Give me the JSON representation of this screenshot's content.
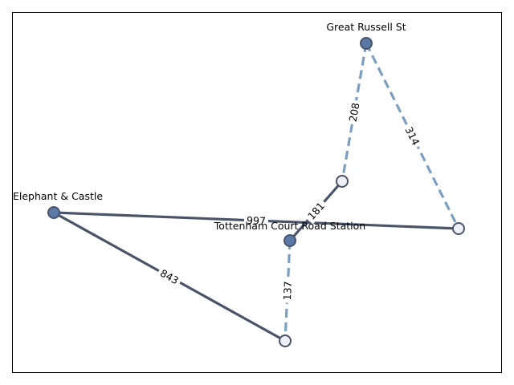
{
  "nodes": [
    {
      "id": "gr",
      "label": "Great Russell St",
      "style": "filled"
    },
    {
      "id": "n1",
      "label": "",
      "style": "hollow"
    },
    {
      "id": "n2",
      "label": "",
      "style": "hollow"
    },
    {
      "id": "ec",
      "label": "Elephant & Castle",
      "style": "filled"
    },
    {
      "id": "tcr",
      "label": "Tottenham Court Road Station",
      "style": "filled"
    },
    {
      "id": "n3",
      "label": "",
      "style": "hollow"
    }
  ],
  "edges": [
    {
      "from": "ec",
      "to": "n2",
      "weight": "997",
      "style": "solid"
    },
    {
      "from": "ec",
      "to": "n3",
      "weight": "843",
      "style": "solid"
    },
    {
      "from": "tcr",
      "to": "n1",
      "weight": "181",
      "style": "solid"
    },
    {
      "from": "gr",
      "to": "n1",
      "weight": "208",
      "style": "dashed"
    },
    {
      "from": "gr",
      "to": "n2",
      "weight": "314",
      "style": "dashed"
    },
    {
      "from": "tcr",
      "to": "n3",
      "weight": "137",
      "style": "dashed"
    }
  ]
}
